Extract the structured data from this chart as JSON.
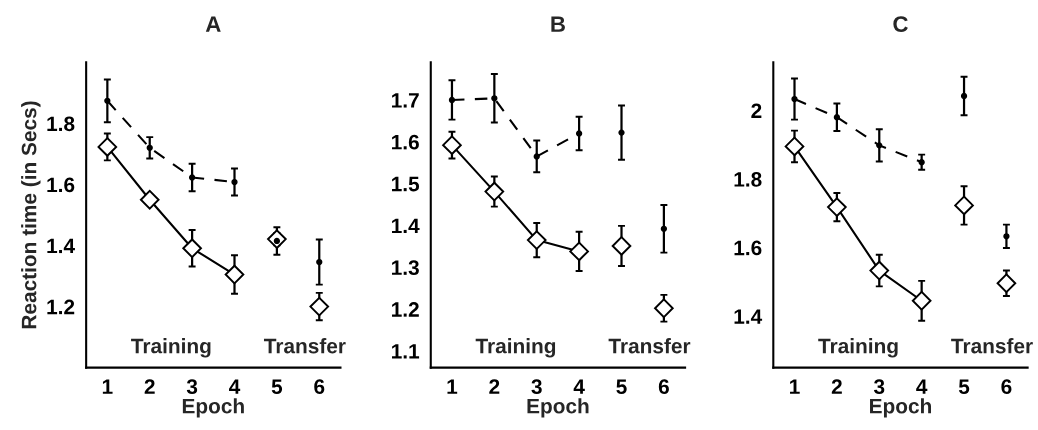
{
  "chart_data": [
    {
      "type": "line",
      "title": "A",
      "xlabel": "Epoch",
      "ylabel": "Reaction time (in Secs)",
      "xlim": [
        0.5,
        6.5
      ],
      "xticks": [
        1,
        2,
        3,
        4,
        5,
        6
      ],
      "ylim": [
        1.0,
        2.0
      ],
      "yticks": [
        1.2,
        1.4,
        1.6,
        1.8
      ],
      "grid": false,
      "legend": false,
      "annotations": [
        "Training",
        "Transfer"
      ],
      "series": [
        {
          "color": "#000000",
          "marker": "circle",
          "line_style": "dashed",
          "x": [
            1,
            2,
            3,
            4
          ],
          "values": [
            1.874,
            1.72,
            1.623,
            1.608
          ],
          "errors": [
            0.07,
            0.035,
            0.045,
            0.044
          ]
        },
        {
          "color": "#000000",
          "marker": "diamond",
          "line_style": "solid",
          "x": [
            1,
            2,
            3,
            4
          ],
          "values": [
            1.723,
            1.55,
            1.391,
            1.305
          ],
          "errors": [
            0.044,
            0.01,
            0.06,
            0.063
          ]
        },
        {
          "type": "scatter",
          "color": "#000000",
          "marker": "diamond",
          "x": [
            5,
            6
          ],
          "values": [
            1.421,
            1.2
          ],
          "errors": [
            0.02,
            0.045
          ]
        },
        {
          "type": "scatter",
          "color": "#000000",
          "marker": "circle",
          "x": [
            5,
            6
          ],
          "values": [
            1.415,
            1.346
          ],
          "errors": [
            0.045,
            0.074
          ]
        }
      ]
    },
    {
      "type": "line",
      "title": "B",
      "xlabel": "Epoch",
      "xlim": [
        0.5,
        6.5
      ],
      "xticks": [
        1,
        2,
        3,
        4,
        5,
        6
      ],
      "ylim": [
        1.06,
        1.79
      ],
      "yticks": [
        1.1,
        1.2,
        1.3,
        1.4,
        1.5,
        1.6,
        1.7
      ],
      "grid": false,
      "legend": false,
      "annotations": [
        "Training",
        "Transfer"
      ],
      "series": [
        {
          "color": "#000000",
          "marker": "circle",
          "line_style": "dashed",
          "x": [
            1,
            2,
            3,
            4
          ],
          "values": [
            1.7,
            1.704,
            1.565,
            1.62
          ],
          "errors": [
            0.047,
            0.058,
            0.038,
            0.04
          ]
        },
        {
          "color": "#000000",
          "marker": "diamond",
          "line_style": "solid",
          "x": [
            1,
            2,
            3,
            4
          ],
          "values": [
            1.592,
            1.481,
            1.365,
            1.338
          ],
          "errors": [
            0.032,
            0.036,
            0.041,
            0.047
          ]
        },
        {
          "type": "scatter",
          "color": "#000000",
          "marker": "diamond",
          "x": [
            5,
            6
          ],
          "values": [
            1.351,
            1.202
          ],
          "errors": [
            0.048,
            0.032
          ]
        },
        {
          "type": "scatter",
          "color": "#000000",
          "marker": "circle",
          "x": [
            5,
            6
          ],
          "values": [
            1.622,
            1.392
          ],
          "errors": [
            0.065,
            0.057
          ]
        }
      ]
    },
    {
      "type": "line",
      "title": "C",
      "xlabel": "Epoch",
      "xlim": [
        0.5,
        6.5
      ],
      "xticks": [
        1,
        2,
        3,
        4,
        5,
        6
      ],
      "ylim": [
        1.25,
        2.14
      ],
      "yticks": [
        1.4,
        1.6,
        1.8,
        {
          "value": 2.0,
          "label": "2"
        }
      ],
      "grid": false,
      "legend": false,
      "annotations": [
        "Training",
        "Transfer"
      ],
      "series": [
        {
          "color": "#000000",
          "marker": "circle",
          "line_style": "dashed",
          "x": [
            1,
            2,
            3,
            4
          ],
          "values": [
            2.033,
            1.98,
            1.898,
            1.849
          ],
          "errors": [
            0.06,
            0.04,
            0.047,
            0.022
          ]
        },
        {
          "color": "#000000",
          "marker": "diamond",
          "line_style": "solid",
          "x": [
            1,
            2,
            3,
            4
          ],
          "values": [
            1.895,
            1.718,
            1.533,
            1.445
          ],
          "errors": [
            0.046,
            0.041,
            0.046,
            0.058
          ]
        },
        {
          "type": "scatter",
          "color": "#000000",
          "marker": "diamond",
          "x": [
            5,
            6
          ],
          "values": [
            1.723,
            1.496
          ],
          "errors": [
            0.056,
            0.037
          ]
        },
        {
          "type": "scatter",
          "color": "#000000",
          "marker": "circle",
          "x": [
            5,
            6
          ],
          "values": [
            2.042,
            1.633
          ],
          "errors": [
            0.056,
            0.034
          ]
        }
      ]
    }
  ]
}
